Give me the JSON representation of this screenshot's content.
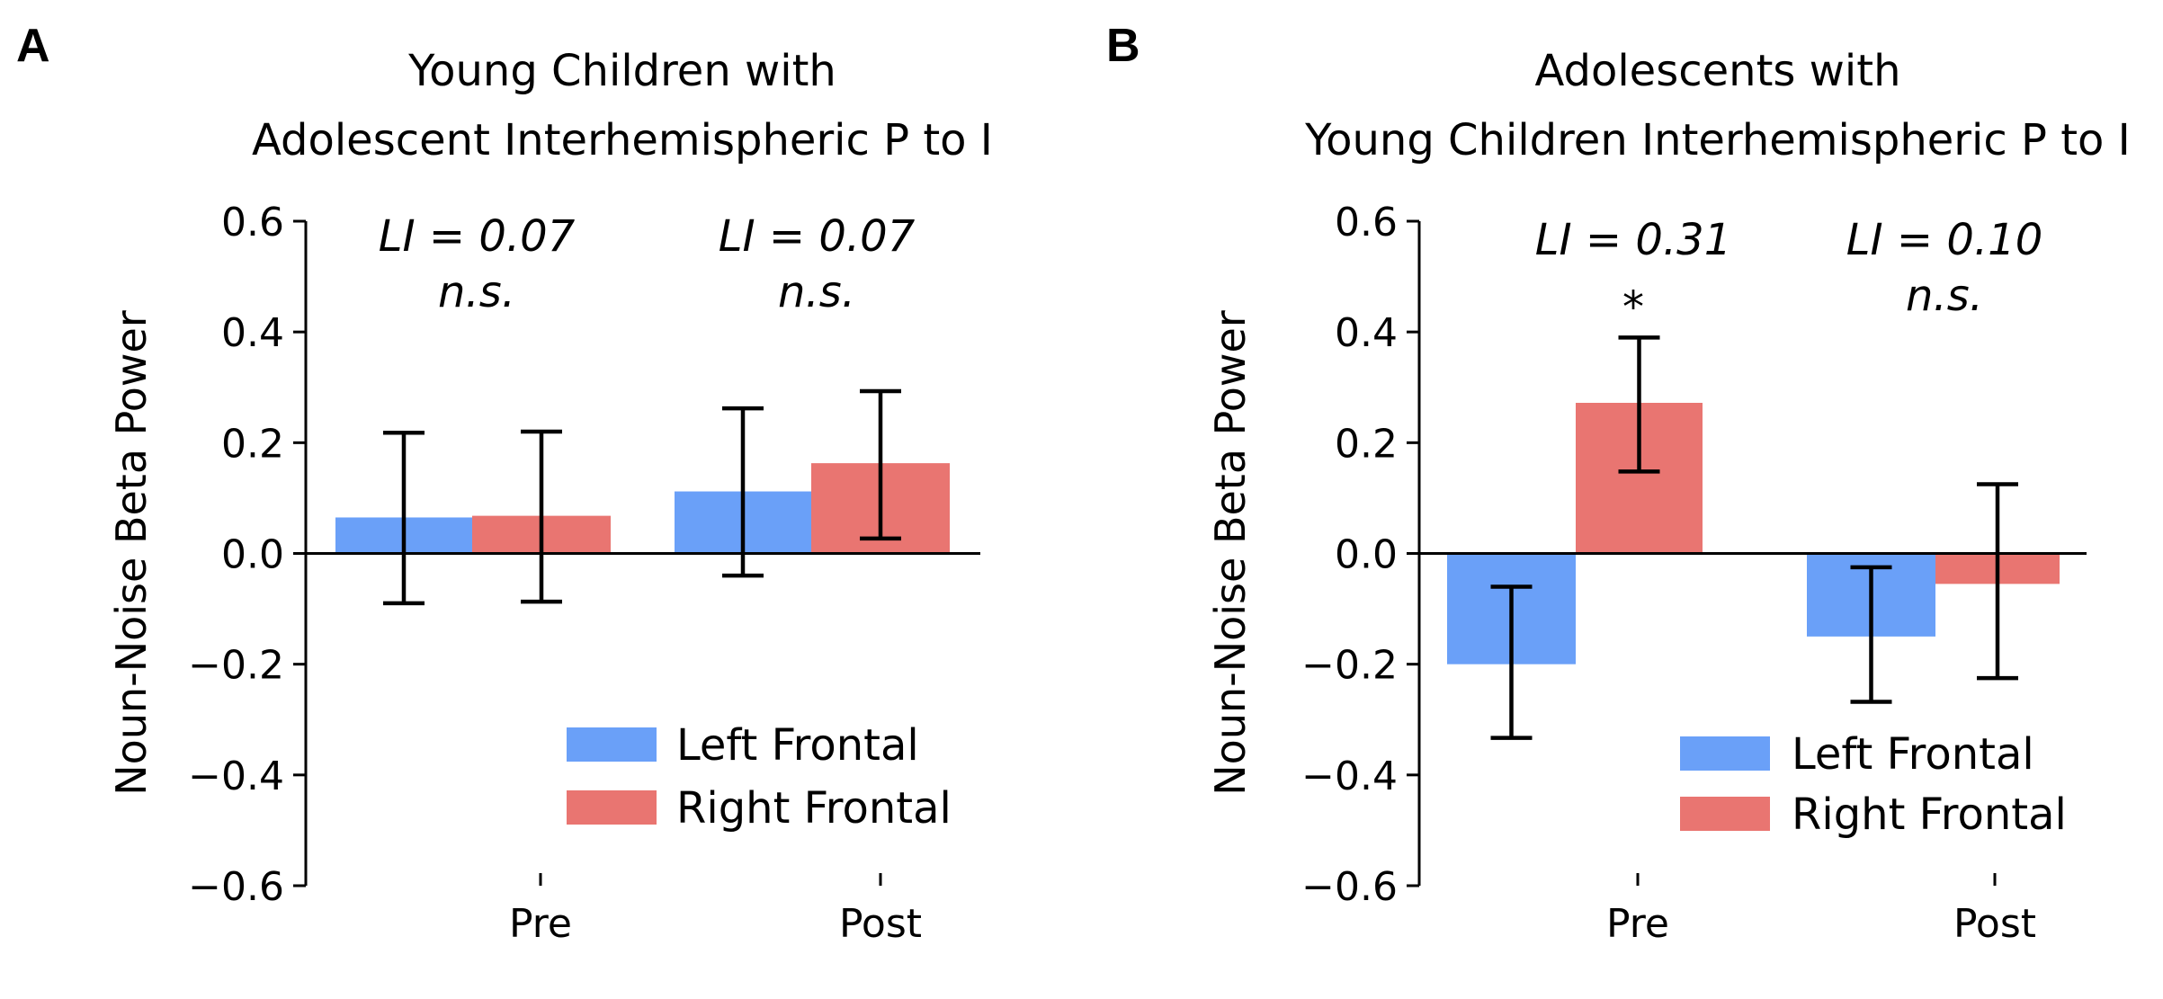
{
  "colors": {
    "left": "#6aa0f8",
    "right": "#e97571",
    "axis": "#000000"
  },
  "chart_data": [
    {
      "type": "bar",
      "panel": "A",
      "title": [
        "Young Children with",
        "Adolescent Interhemispheric P to I"
      ],
      "ylabel": "Noun-Noise Beta Power",
      "ylim": [
        -0.6,
        0.6
      ],
      "yticks": [
        0.6,
        0.4,
        0.2,
        0.0,
        -0.2,
        -0.4,
        -0.6
      ],
      "ytick_labels": [
        "0.6",
        "0.4",
        "0.2",
        "0.0",
        "−0.2",
        "−0.4",
        "−0.6"
      ],
      "categories": [
        "Pre",
        "Post"
      ],
      "series": [
        {
          "name": "Left Frontal",
          "values": [
            0.065,
            0.112
          ],
          "err_low": [
            -0.09,
            -0.04
          ],
          "err_high": [
            0.218,
            0.262
          ]
        },
        {
          "name": "Right Frontal",
          "values": [
            0.068,
            0.163
          ],
          "err_low": [
            -0.087,
            0.027
          ],
          "err_high": [
            0.22,
            0.293
          ]
        }
      ],
      "annotations": [
        {
          "li": "LI = 0.07",
          "sig": "n.s."
        },
        {
          "li": "LI = 0.07",
          "sig": "n.s."
        }
      ],
      "legend": "bottom-right",
      "grid": false
    },
    {
      "type": "bar",
      "panel": "B",
      "title": [
        "Adolescents with",
        "Young Children Interhemispheric P to I"
      ],
      "ylabel": "Noun-Noise Beta Power",
      "ylim": [
        -0.6,
        0.6
      ],
      "yticks": [
        0.6,
        0.4,
        0.2,
        0.0,
        -0.2,
        -0.4,
        -0.6
      ],
      "ytick_labels": [
        "0.6",
        "0.4",
        "0.2",
        "0.0",
        "−0.2",
        "−0.4",
        "−0.6"
      ],
      "categories": [
        "Pre",
        "Post"
      ],
      "series": [
        {
          "name": "Left Frontal",
          "values": [
            -0.2,
            -0.15
          ],
          "err_low": [
            -0.333,
            -0.268
          ],
          "err_high": [
            -0.06,
            -0.025
          ]
        },
        {
          "name": "Right Frontal",
          "values": [
            0.272,
            -0.055
          ],
          "err_low": [
            0.148,
            -0.225
          ],
          "err_high": [
            0.39,
            0.125
          ]
        }
      ],
      "annotations": [
        {
          "li": "LI = 0.31",
          "sig": "*"
        },
        {
          "li": "LI = 0.10",
          "sig": "n.s."
        }
      ],
      "legend": "bottom-right",
      "grid": false
    }
  ]
}
